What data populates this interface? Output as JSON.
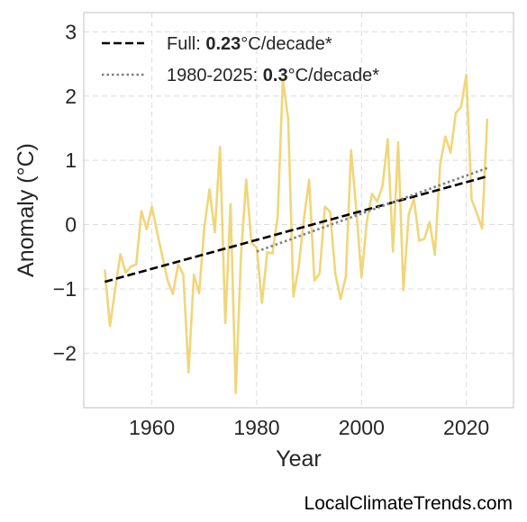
{
  "chart_data": {
    "type": "line",
    "xlabel": "Year",
    "ylabel": "Anomaly (°C)",
    "xlim": [
      1947,
      2029
    ],
    "ylim": [
      -2.85,
      3.3
    ],
    "x_ticks": [
      1960,
      1980,
      2000,
      2020
    ],
    "y_ticks": [
      -2,
      -1,
      0,
      1,
      2,
      3
    ],
    "y_tick_labels": [
      "−2",
      "−1",
      "0",
      "1",
      "2",
      "3"
    ],
    "grid": true,
    "legend_position": "top-left",
    "series": [
      {
        "role": "data",
        "color": "#f0d67a",
        "x": [
          1951,
          1952,
          1953,
          1954,
          1955,
          1956,
          1957,
          1958,
          1959,
          1960,
          1961,
          1962,
          1963,
          1964,
          1965,
          1966,
          1967,
          1968,
          1969,
          1970,
          1971,
          1972,
          1973,
          1974,
          1975,
          1976,
          1977,
          1978,
          1979,
          1980,
          1981,
          1982,
          1983,
          1984,
          1985,
          1986,
          1987,
          1988,
          1989,
          1990,
          1991,
          1992,
          1993,
          1994,
          1995,
          1996,
          1997,
          1998,
          1999,
          2000,
          2001,
          2002,
          2003,
          2004,
          2005,
          2006,
          2007,
          2008,
          2009,
          2010,
          2011,
          2012,
          2013,
          2014,
          2015,
          2016,
          2017,
          2018,
          2019,
          2020,
          2021,
          2022,
          2023,
          2024
        ],
        "y": [
          -0.7,
          -1.58,
          -1.0,
          -0.46,
          -0.75,
          -0.65,
          -0.62,
          0.21,
          -0.07,
          0.28,
          -0.12,
          -0.5,
          -0.87,
          -1.08,
          -0.62,
          -0.78,
          -2.3,
          -0.78,
          -1.07,
          -0.04,
          0.55,
          -0.12,
          1.21,
          -1.53,
          0.32,
          -2.62,
          -0.48,
          0.7,
          -0.28,
          -0.36,
          -1.22,
          -0.43,
          -0.45,
          0.12,
          2.27,
          1.64,
          -1.12,
          -0.66,
          0.08,
          0.7,
          -0.87,
          -0.76,
          0.28,
          0.2,
          -0.76,
          -1.16,
          -0.81,
          1.16,
          0.23,
          -0.82,
          0.04,
          0.48,
          0.36,
          0.6,
          1.33,
          -0.42,
          1.28,
          -1.02,
          0.16,
          0.4,
          -0.25,
          -0.22,
          0.04,
          -0.47,
          0.94,
          1.37,
          1.12,
          1.74,
          1.83,
          2.33,
          0.39,
          0.18,
          -0.06,
          1.65
        ]
      },
      {
        "role": "trend",
        "name_prefix": "Full: ",
        "name_value": "0.23",
        "name_suffix": "°C/decade*",
        "style": "dashed",
        "color": "#000000",
        "x": [
          1951,
          2024
        ],
        "y": [
          -0.89,
          0.75
        ]
      },
      {
        "role": "trend",
        "name_prefix": "1980-2025: ",
        "name_value": "0.3",
        "name_suffix": "°C/decade*",
        "style": "dotted",
        "color": "#808080",
        "x": [
          1980,
          2024
        ],
        "y": [
          -0.42,
          0.88
        ]
      }
    ]
  },
  "credit": "LocalClimateTrends.com"
}
